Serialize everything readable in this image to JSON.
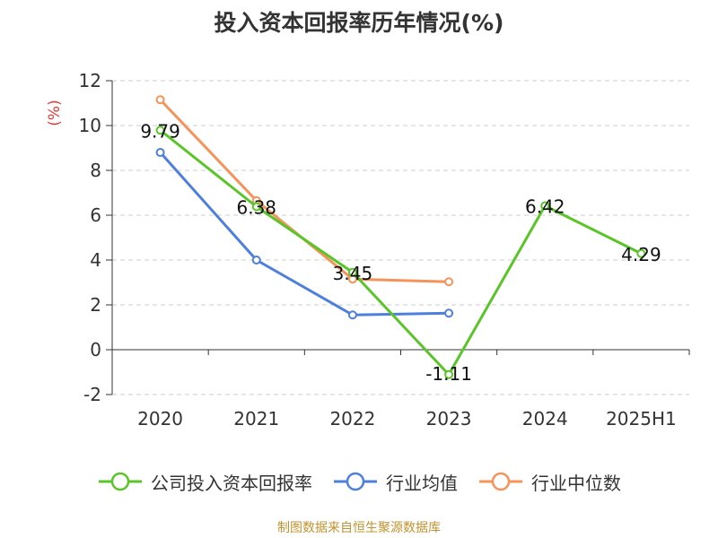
{
  "chart_data": {
    "type": "line",
    "title": "投入资本回报率历年情况(%)",
    "ylabel": "(%)",
    "categories": [
      "2020",
      "2021",
      "2022",
      "2023",
      "2024",
      "2025H1"
    ],
    "ylim": [
      -2,
      12
    ],
    "yticks": [
      -2,
      0,
      2,
      4,
      6,
      8,
      10,
      12
    ],
    "grid": true,
    "legend_position": "bottom",
    "series": [
      {
        "name": "公司投入资本回报率",
        "color": "#5ac528",
        "values": [
          9.79,
          6.38,
          3.45,
          -1.11,
          6.42,
          4.29
        ],
        "labels": [
          "9.79",
          "6.38",
          "3.45",
          "-1.11",
          "6.42",
          "4.29"
        ]
      },
      {
        "name": "行业均值",
        "color": "#4f7fdc",
        "values": [
          8.8,
          4.0,
          1.55,
          1.63,
          null,
          null
        ]
      },
      {
        "name": "行业中位数",
        "color": "#f5935a",
        "values": [
          11.15,
          6.65,
          3.15,
          3.03,
          null,
          null
        ]
      }
    ]
  },
  "footer": {
    "source": "制图数据来自恒生聚源数据库"
  }
}
